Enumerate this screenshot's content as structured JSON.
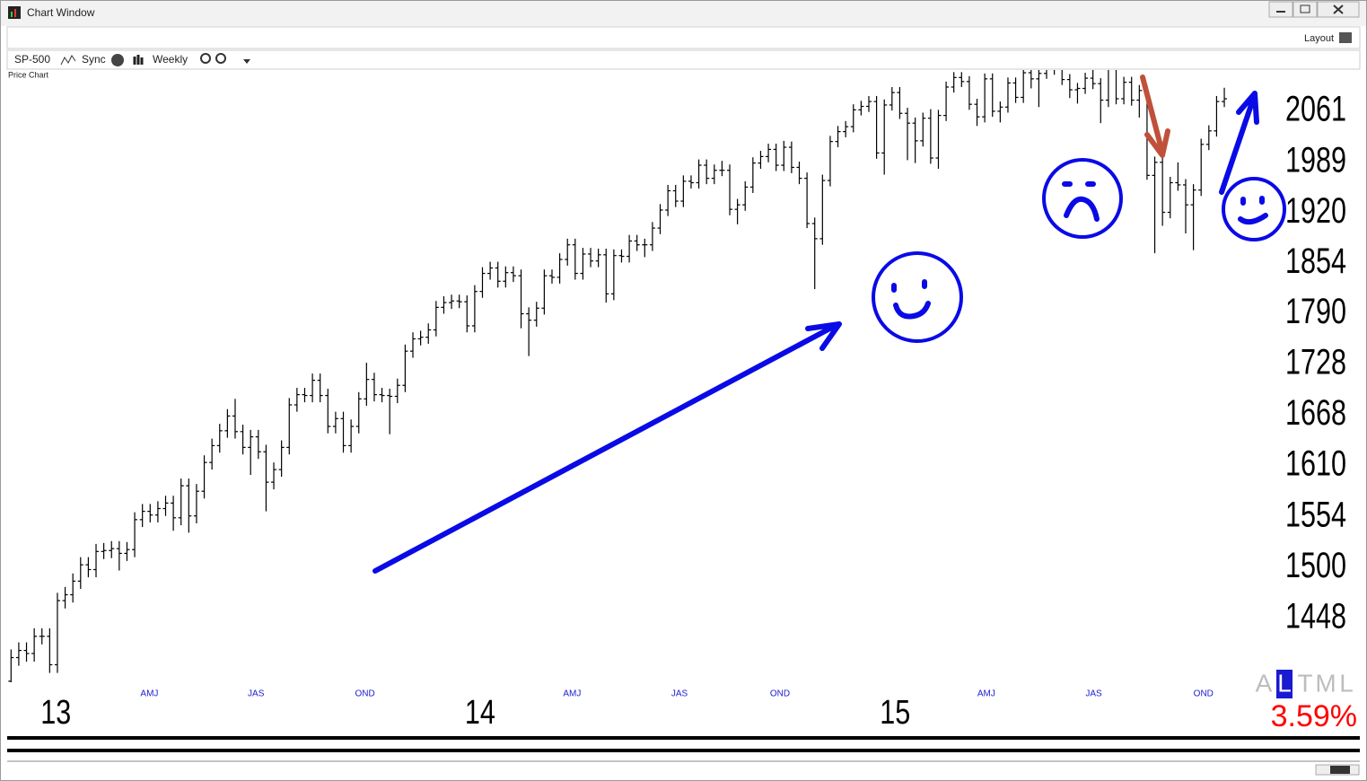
{
  "window": {
    "title": "Chart Window",
    "layout_label": "Layout"
  },
  "toolbar": {
    "symbol": "SP-500",
    "sync": "Sync",
    "period": "Weekly"
  },
  "chart_data": {
    "type": "ohlc",
    "title": "Price Chart",
    "log_scale": true,
    "color": "#000000",
    "ylim": [
      1385,
      2121
    ],
    "yticks": [
      2061,
      1989,
      1920,
      1854,
      1790,
      1728,
      1668,
      1610,
      1554,
      1500,
      1448
    ],
    "xlim": [
      -0.5,
      163.5
    ],
    "xticks": [
      {
        "value": 17.9,
        "label": "AMJ"
      },
      {
        "value": 31.7,
        "label": "JAS"
      },
      {
        "value": 45.8,
        "label": "OND"
      },
      {
        "value": 72.6,
        "label": "AMJ"
      },
      {
        "value": 86.5,
        "label": "JAS"
      },
      {
        "value": 99.5,
        "label": "OND"
      },
      {
        "value": 126.2,
        "label": "AMJ"
      },
      {
        "value": 140.1,
        "label": "JAS"
      },
      {
        "value": 154.3,
        "label": "OND"
      }
    ],
    "x_major_ticks": [
      {
        "value": 5.8,
        "label": "13"
      },
      {
        "value": 60.7,
        "label": "14"
      },
      {
        "value": 114.4,
        "label": "15"
      }
    ],
    "open": [
      1386,
      1409,
      1416,
      1413,
      1430,
      1430,
      1402,
      1466,
      1472,
      1486,
      1503,
      1498,
      1517,
      1518,
      1520,
      1515,
      1519,
      1551,
      1560,
      1556,
      1563,
      1569,
      1553,
      1588,
      1555,
      1582,
      1614,
      1633,
      1650,
      1667,
      1649,
      1631,
      1643,
      1626,
      1592,
      1606,
      1631,
      1680,
      1692,
      1691,
      1709,
      1691,
      1655,
      1664,
      1633,
      1655,
      1687,
      1710,
      1692,
      1691,
      1690,
      1703,
      1744,
      1759,
      1761,
      1770,
      1798,
      1804,
      1806,
      1805,
      1775,
      1818,
      1841,
      1848,
      1831,
      1842,
      1838,
      1790,
      1782,
      1797,
      1838,
      1836,
      1859,
      1878,
      1841,
      1866,
      1857,
      1865,
      1815,
      1864,
      1863,
      1883,
      1878,
      1878,
      1900,
      1924,
      1950,
      1936,
      1963,
      1961,
      1985,
      1967,
      1978,
      1978,
      1925,
      1931,
      1955,
      1988,
      1997,
      2007,
      1985,
      2010,
      1982,
      1967,
      1906,
      1886,
      1964,
      2018,
      2032,
      2039,
      2063,
      2068,
      2075,
      2002,
      2070,
      2088,
      2058,
      2044,
      2019,
      2051,
      1995,
      2055,
      2096,
      2110,
      2104,
      2071,
      2053,
      2108,
      2061,
      2067,
      2102,
      2081,
      2117,
      2108,
      2116,
      2122,
      2126,
      2107,
      2092,
      2094,
      2109,
      2101,
      2077,
      2126,
      2079,
      2103,
      2077,
      2091,
      1971,
      1989,
      1921,
      1961,
      1958,
      1931,
      1951,
      2014,
      2033,
      2075
    ],
    "high": [
      1417,
      1424,
      1424,
      1438,
      1438,
      1438,
      1474,
      1480,
      1494,
      1511,
      1511,
      1525,
      1526,
      1528,
      1528,
      1527,
      1559,
      1568,
      1568,
      1571,
      1577,
      1577,
      1596,
      1596,
      1590,
      1622,
      1641,
      1658,
      1675,
      1687,
      1657,
      1651,
      1651,
      1634,
      1614,
      1639,
      1688,
      1700,
      1700,
      1717,
      1717,
      1699,
      1672,
      1672,
      1663,
      1695,
      1730,
      1718,
      1700,
      1699,
      1711,
      1752,
      1767,
      1769,
      1778,
      1806,
      1812,
      1814,
      1814,
      1813,
      1826,
      1849,
      1856,
      1856,
      1850,
      1850,
      1846,
      1798,
      1805,
      1846,
      1846,
      1867,
      1886,
      1886,
      1874,
      1874,
      1873,
      1873,
      1872,
      1872,
      1891,
      1891,
      1886,
      1908,
      1932,
      1958,
      1958,
      1971,
      1971,
      1993,
      1993,
      1986,
      1991,
      1986,
      1939,
      1963,
      1996,
      2005,
      2015,
      2015,
      2019,
      2018,
      1990,
      1975,
      1914,
      1972,
      2026,
      2040,
      2047,
      2071,
      2076,
      2083,
      2083,
      2078,
      2096,
      2096,
      2066,
      2052,
      2059,
      2064,
      2063,
      2104,
      2118,
      2118,
      2112,
      2079,
      2116,
      2116,
      2075,
      2110,
      2110,
      2125,
      2125,
      2124,
      2130,
      2134,
      2134,
      2115,
      2102,
      2117,
      2126,
      2109,
      2134,
      2134,
      2111,
      2111,
      2099,
      2099,
      1997,
      1997,
      1969,
      1989,
      1966,
      1959,
      2022,
      2041,
      2083,
      2095
    ],
    "low": [
      1378,
      1401,
      1405,
      1405,
      1422,
      1394,
      1394,
      1458,
      1464,
      1478,
      1490,
      1490,
      1509,
      1510,
      1497,
      1507,
      1511,
      1543,
      1548,
      1548,
      1555,
      1539,
      1545,
      1537,
      1547,
      1574,
      1606,
      1625,
      1642,
      1641,
      1623,
      1600,
      1618,
      1560,
      1584,
      1598,
      1623,
      1672,
      1683,
      1683,
      1683,
      1647,
      1647,
      1625,
      1625,
      1647,
      1679,
      1684,
      1683,
      1646,
      1682,
      1695,
      1736,
      1751,
      1753,
      1762,
      1790,
      1796,
      1797,
      1767,
      1767,
      1810,
      1833,
      1823,
      1823,
      1830,
      1772,
      1738,
      1774,
      1789,
      1828,
      1828,
      1851,
      1833,
      1833,
      1849,
      1849,
      1804,
      1807,
      1855,
      1855,
      1870,
      1862,
      1870,
      1892,
      1916,
      1928,
      1928,
      1953,
      1953,
      1959,
      1959,
      1970,
      1917,
      1905,
      1923,
      1947,
      1980,
      1989,
      1977,
      1977,
      1974,
      1959,
      1900,
      1821,
      1878,
      1956,
      2010,
      2024,
      2031,
      2055,
      2060,
      1994,
      1972,
      2062,
      2050,
      1992,
      1988,
      2011,
      1987,
      1980,
      2047,
      2088,
      2096,
      2063,
      2040,
      2045,
      2053,
      2045,
      2059,
      2073,
      2073,
      2094,
      2067,
      2108,
      2114,
      2099,
      2080,
      2072,
      2086,
      2093,
      2044,
      2067,
      2071,
      2071,
      2069,
      2052,
      1965,
      1867,
      1903,
      1913,
      1950,
      1893,
      1871,
      1943,
      2006,
      2025,
      2067
    ],
    "close": [
      1409,
      1416,
      1413,
      1430,
      1430,
      1402,
      1466,
      1472,
      1486,
      1503,
      1498,
      1517,
      1518,
      1520,
      1515,
      1519,
      1551,
      1560,
      1556,
      1563,
      1569,
      1553,
      1588,
      1555,
      1582,
      1614,
      1633,
      1650,
      1667,
      1649,
      1631,
      1643,
      1626,
      1592,
      1606,
      1631,
      1680,
      1692,
      1691,
      1709,
      1691,
      1655,
      1664,
      1633,
      1655,
      1687,
      1710,
      1692,
      1691,
      1690,
      1703,
      1744,
      1759,
      1761,
      1770,
      1798,
      1804,
      1806,
      1805,
      1775,
      1818,
      1841,
      1848,
      1831,
      1842,
      1838,
      1790,
      1782,
      1797,
      1838,
      1836,
      1859,
      1878,
      1841,
      1866,
      1857,
      1865,
      1815,
      1864,
      1863,
      1883,
      1878,
      1878,
      1900,
      1924,
      1950,
      1936,
      1963,
      1961,
      1985,
      1967,
      1978,
      1978,
      1925,
      1931,
      1955,
      1988,
      1997,
      2007,
      1985,
      2010,
      1982,
      1967,
      1906,
      1886,
      1964,
      2018,
      2032,
      2039,
      2063,
      2068,
      2075,
      2002,
      2070,
      2088,
      2058,
      2044,
      2019,
      2051,
      1995,
      2055,
      2096,
      2110,
      2104,
      2071,
      2053,
      2108,
      2061,
      2067,
      2102,
      2081,
      2117,
      2108,
      2116,
      2122,
      2126,
      2107,
      2092,
      2094,
      2109,
      2101,
      2077,
      2126,
      2079,
      2103,
      2077,
      2091,
      1971,
      1989,
      1921,
      1961,
      1958,
      1931,
      1951,
      2014,
      2033,
      2075,
      2079
    ]
  },
  "scale_buttons": {
    "labels": [
      "A",
      "L",
      "T",
      "M",
      "L"
    ],
    "selected": 1
  },
  "change_label": "3.59%"
}
